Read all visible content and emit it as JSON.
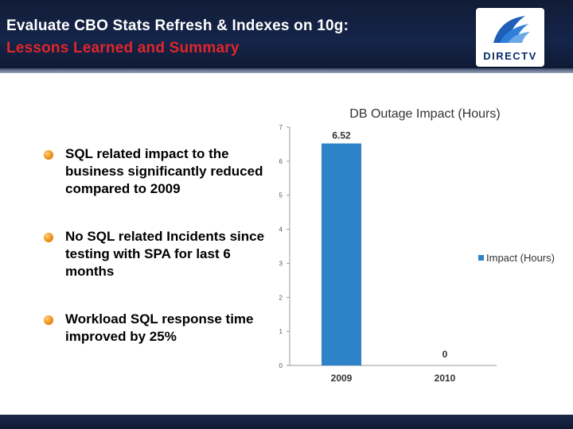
{
  "header": {
    "title_line1": "Evaluate CBO Stats Refresh & Indexes on 10g:",
    "title_line2": "Lessons Learned and Summary",
    "logo_text": "DIRECTV",
    "title_color": "#ffffff",
    "subtitle_color": "#e0262b"
  },
  "bullets": [
    "SQL related impact to the business significantly reduced compared to 2009",
    "No SQL related Incidents since testing with SPA for last 6 months",
    "Workload SQL response time improved by 25%"
  ],
  "chart_data": {
    "type": "bar",
    "title": "DB Outage Impact (Hours)",
    "categories": [
      "2009",
      "2010"
    ],
    "series": [
      {
        "name": "Impact (Hours)",
        "values": [
          6.52,
          0
        ],
        "color": "#2e82c8"
      }
    ],
    "data_labels": [
      "6.52",
      "0"
    ],
    "y_ticks": [
      "0",
      "1",
      "2",
      "3",
      "4",
      "5",
      "6",
      "7"
    ],
    "ylim": [
      0,
      7
    ],
    "legend_position": "right",
    "grid": false
  }
}
